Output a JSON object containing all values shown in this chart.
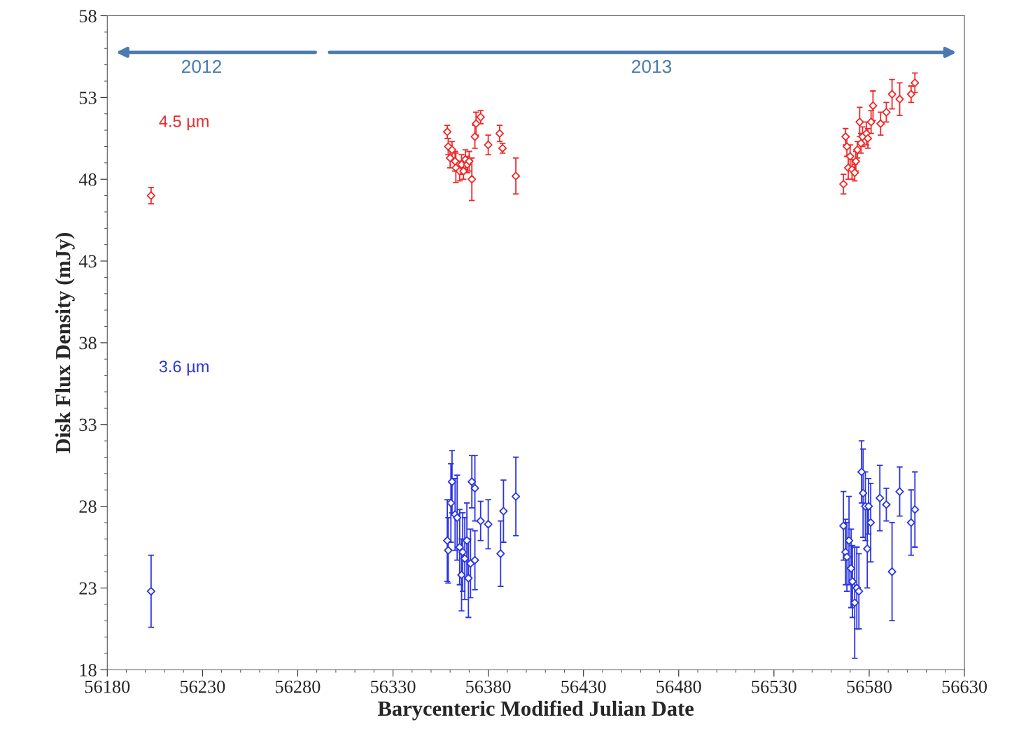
{
  "chart_data": {
    "type": "scatter",
    "xlabel": "Barycenteric Modified Julian Date",
    "ylabel": "Disk Flux Density (mJy)",
    "xlim": [
      56180,
      56630
    ],
    "xticks": [
      56180,
      56230,
      56280,
      56330,
      56380,
      56430,
      56480,
      56530,
      56580,
      56630
    ],
    "ylim": [
      18,
      58
    ],
    "yticks": [
      18,
      23,
      28,
      33,
      38,
      43,
      48,
      53,
      58
    ],
    "grid": false,
    "marker": "diamond",
    "annotations": [
      {
        "text": "2012"
      },
      {
        "text": "2013"
      }
    ],
    "series": [
      {
        "name": "4.5 µm",
        "color": "#ee2a2a",
        "x": [
          56203,
          56358.5,
          56359,
          56360,
          56361,
          56362.6,
          56363,
          56365,
          56366,
          56367,
          56368,
          56369,
          56370,
          56371.4,
          56373,
          56373.6,
          56376,
          56380,
          56386,
          56387.5,
          56394.5,
          56566.5,
          56567.6,
          56568.3,
          56569,
          56570,
          56571,
          56572.4,
          56573,
          56573.8,
          56575,
          56575.7,
          56576.5,
          56578.5,
          56579.3,
          56581,
          56582,
          56586,
          56589,
          56592,
          56596,
          56602,
          56604
        ],
        "values": [
          47.0,
          50.9,
          50.0,
          49.3,
          49.8,
          49.1,
          48.7,
          48.5,
          48.9,
          48.5,
          49.2,
          48.9,
          49.1,
          48.0,
          50.6,
          51.4,
          51.8,
          50.1,
          50.8,
          49.9,
          48.2,
          47.7,
          50.6,
          50.0,
          48.7,
          49.4,
          48.6,
          48.4,
          49.1,
          49.8,
          51.5,
          50.2,
          50.6,
          50.8,
          50.5,
          51.5,
          52.5,
          51.4,
          52.1,
          53.2,
          52.9,
          53.2,
          53.9
        ],
        "errors": [
          0.5,
          0.4,
          0.5,
          0.6,
          0.5,
          0.6,
          0.9,
          0.6,
          0.6,
          0.5,
          0.6,
          0.5,
          0.6,
          1.3,
          0.7,
          0.7,
          0.4,
          0.6,
          0.5,
          0.3,
          1.1,
          0.6,
          0.5,
          0.6,
          0.7,
          0.7,
          0.6,
          0.5,
          0.6,
          0.5,
          0.9,
          0.6,
          0.6,
          0.7,
          0.6,
          0.7,
          0.9,
          0.7,
          0.6,
          0.9,
          1.0,
          0.5,
          0.6
        ]
      },
      {
        "name": "3.6 µm",
        "color": "#2b35e0",
        "x": [
          56203,
          56358.5,
          56359,
          56360.4,
          56361,
          56362.6,
          56363.7,
          56365,
          56366,
          56366.6,
          56367.7,
          56368.8,
          56369.6,
          56370.7,
          56371.4,
          56373,
          56373,
          56376,
          56380,
          56386.5,
          56388,
          56394.5,
          56566.5,
          56567.6,
          56568.3,
          56569.4,
          56570.5,
          56571.2,
          56572.4,
          56573.5,
          56574.6,
          56576,
          56576.8,
          56578,
          56579,
          56579.7,
          56580.8,
          56585.6,
          56589,
          56592,
          56596,
          56602,
          56604
        ],
        "values": [
          22.8,
          25.9,
          25.3,
          28.2,
          29.5,
          27.5,
          27.3,
          25.5,
          23.8,
          25.2,
          24.8,
          25.9,
          23.6,
          24.5,
          29.5,
          29.1,
          24.7,
          27.1,
          26.9,
          25.1,
          27.7,
          28.6,
          26.8,
          25.2,
          24.9,
          25.9,
          24.2,
          23.4,
          22.1,
          23.0,
          22.8,
          30.1,
          28.8,
          28.0,
          25.4,
          28.0,
          27.0,
          28.5,
          28.1,
          24.0,
          28.9,
          27.0,
          27.8
        ],
        "errors": [
          2.2,
          2.5,
          2.0,
          2.4,
          1.9,
          2.2,
          2.6,
          2.3,
          2.2,
          2.4,
          2.5,
          2.3,
          2.4,
          2.1,
          1.6,
          2.0,
          1.8,
          1.2,
          1.5,
          2.0,
          1.9,
          2.4,
          2.1,
          2.0,
          2.1,
          2.7,
          2.4,
          2.2,
          3.4,
          2.5,
          2.3,
          1.9,
          2.7,
          2.1,
          2.4,
          1.7,
          2.4,
          2.0,
          1.0,
          3.0,
          1.5,
          2.0,
          2.3
        ]
      }
    ]
  }
}
